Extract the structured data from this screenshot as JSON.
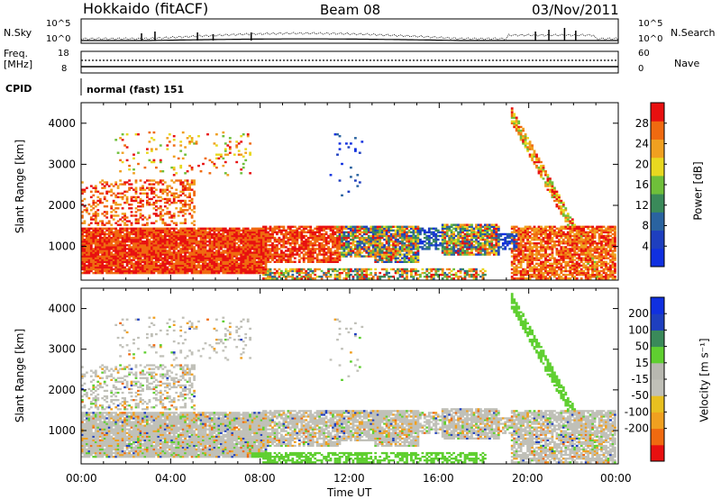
{
  "header": {
    "station": "Hokkaido (fitACF)",
    "beam": "Beam 08",
    "date": "03/Nov/2011"
  },
  "noise_panel": {
    "left_label": "N.Sky",
    "right_label": "N.Search",
    "top_tick": "10^5",
    "bottom_tick": "10^0"
  },
  "freq_panel": {
    "left_label_1": "Freq.",
    "left_label_2": "[MHz]",
    "right_label": "Nave",
    "left_ticks": [
      "18",
      "8"
    ],
    "right_ticks": [
      "60",
      "0"
    ]
  },
  "cpid": {
    "label": "CPID",
    "value": "normal (fast) 151"
  },
  "time_axis": {
    "xlabel": "Time UT",
    "ticks": [
      "00:00",
      "04:00",
      "08:00",
      "12:00",
      "16:00",
      "20:00",
      "00:00"
    ]
  },
  "colors": {
    "power_scale": [
      "#1030e0",
      "#1e3fbf",
      "#2a63a0",
      "#3a8a5a",
      "#6fbf3a",
      "#e8d820",
      "#f0a020",
      "#f06a10",
      "#e81010"
    ],
    "velocity_scale": [
      "#e81010",
      "#f06a10",
      "#f0a020",
      "#e8c020",
      "#c0c0b8",
      "#b8b8b0",
      "#5fcf30",
      "#3a8a5a",
      "#1e3fbf",
      "#1030e0"
    ]
  },
  "chart_data": [
    {
      "type": "heatmap",
      "panel": "power",
      "ylabel": "Slant Range [km]",
      "xlabel": "",
      "x_range_hours": [
        0,
        24
      ],
      "ylim": [
        180,
        4500
      ],
      "yticks": [
        1000,
        2000,
        3000,
        4000
      ],
      "colorbar_label": "Power [dB]",
      "colorbar_ticks": [
        4,
        8,
        12,
        16,
        20,
        24,
        28
      ],
      "colorbar_range": [
        0,
        32
      ]
    },
    {
      "type": "heatmap",
      "panel": "velocity",
      "ylabel": "Slant Range [km]",
      "xlabel": "Time UT",
      "x_range_hours": [
        0,
        24
      ],
      "ylim": [
        180,
        4500
      ],
      "yticks": [
        1000,
        2000,
        3000,
        4000
      ],
      "colorbar_label": "Velocity [m s⁻¹]",
      "colorbar_ticks": [
        200,
        100,
        50,
        15,
        -15,
        -50,
        -100,
        -200
      ]
    }
  ]
}
